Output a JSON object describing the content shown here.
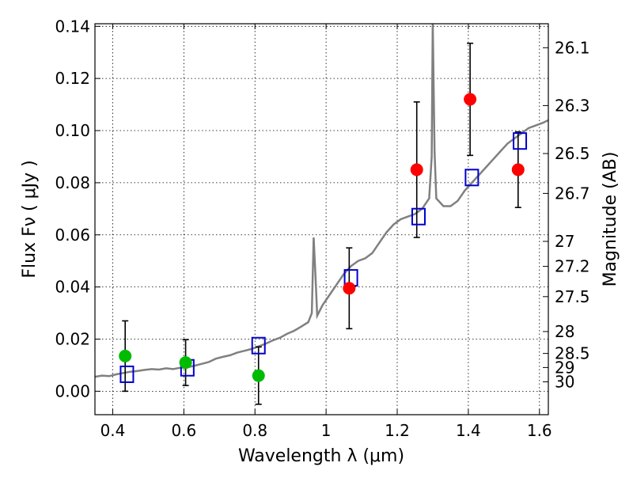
{
  "chart_data": {
    "type": "scatter",
    "xlabel": "Wavelength  λ (μm)",
    "ylabel": "Flux  Fν  ( μJy )",
    "y2label": "Magnitude (AB)",
    "xlim": [
      0.35,
      1.625
    ],
    "ylim": [
      -0.009,
      0.141
    ],
    "x_ticks": [
      0.4,
      0.6,
      0.8,
      1.0,
      1.2,
      1.4,
      1.6
    ],
    "x_tick_labels": [
      "0.4",
      "0.6",
      "0.8",
      "1",
      "1.2",
      "1.4",
      "1.6"
    ],
    "y_ticks": [
      0.0,
      0.02,
      0.04,
      0.06,
      0.08,
      0.1,
      0.12,
      0.14
    ],
    "y_tick_labels": [
      "0.00",
      "0.02",
      "0.04",
      "0.06",
      "0.08",
      "0.10",
      "0.12",
      "0.14"
    ],
    "y2_ticks": [
      {
        "label": "26.1",
        "flux": 0.1318
      },
      {
        "label": "26.3",
        "flux": 0.1096
      },
      {
        "label": "26.5",
        "flux": 0.0912
      },
      {
        "label": "26.7",
        "flux": 0.0759
      },
      {
        "label": "27",
        "flux": 0.0575
      },
      {
        "label": "27.2",
        "flux": 0.0479
      },
      {
        "label": "27.5",
        "flux": 0.0363
      },
      {
        "label": "28",
        "flux": 0.0229
      },
      {
        "label": "28.5",
        "flux": 0.0145
      },
      {
        "label": "29",
        "flux": 0.0091
      },
      {
        "label": "30",
        "flux": 0.0036
      }
    ],
    "grid": true,
    "series": [
      {
        "kind": "spectrum",
        "color": "#808080",
        "points": [
          [
            0.35,
            0.0055
          ],
          [
            0.37,
            0.006
          ],
          [
            0.39,
            0.0058
          ],
          [
            0.41,
            0.0065
          ],
          [
            0.43,
            0.007
          ],
          [
            0.45,
            0.0075
          ],
          [
            0.47,
            0.0078
          ],
          [
            0.49,
            0.0082
          ],
          [
            0.51,
            0.0085
          ],
          [
            0.53,
            0.0083
          ],
          [
            0.55,
            0.0088
          ],
          [
            0.57,
            0.0085
          ],
          [
            0.59,
            0.009
          ],
          [
            0.61,
            0.0092
          ],
          [
            0.63,
            0.0098
          ],
          [
            0.65,
            0.0105
          ],
          [
            0.67,
            0.0112
          ],
          [
            0.69,
            0.0125
          ],
          [
            0.71,
            0.0132
          ],
          [
            0.73,
            0.0138
          ],
          [
            0.75,
            0.0148
          ],
          [
            0.77,
            0.0155
          ],
          [
            0.79,
            0.0162
          ],
          [
            0.81,
            0.0172
          ],
          [
            0.83,
            0.0182
          ],
          [
            0.85,
            0.0195
          ],
          [
            0.87,
            0.0205
          ],
          [
            0.89,
            0.022
          ],
          [
            0.91,
            0.0232
          ],
          [
            0.93,
            0.0248
          ],
          [
            0.95,
            0.0265
          ],
          [
            0.96,
            0.03
          ],
          [
            0.965,
            0.059
          ],
          [
            0.97,
            0.045
          ],
          [
            0.975,
            0.029
          ],
          [
            0.99,
            0.033
          ],
          [
            1.01,
            0.037
          ],
          [
            1.03,
            0.041
          ],
          [
            1.05,
            0.045
          ],
          [
            1.07,
            0.048
          ],
          [
            1.09,
            0.05
          ],
          [
            1.11,
            0.051
          ],
          [
            1.13,
            0.053
          ],
          [
            1.15,
            0.057
          ],
          [
            1.17,
            0.061
          ],
          [
            1.19,
            0.064
          ],
          [
            1.21,
            0.066
          ],
          [
            1.23,
            0.067
          ],
          [
            1.25,
            0.068
          ],
          [
            1.27,
            0.07
          ],
          [
            1.28,
            0.072
          ],
          [
            1.29,
            0.074
          ],
          [
            1.297,
            0.09
          ],
          [
            1.3,
            0.142
          ],
          [
            1.305,
            0.092
          ],
          [
            1.31,
            0.074
          ],
          [
            1.33,
            0.071
          ],
          [
            1.35,
            0.071
          ],
          [
            1.37,
            0.073
          ],
          [
            1.39,
            0.077
          ],
          [
            1.41,
            0.08
          ],
          [
            1.43,
            0.083
          ],
          [
            1.45,
            0.086
          ],
          [
            1.47,
            0.089
          ],
          [
            1.49,
            0.092
          ],
          [
            1.51,
            0.095
          ],
          [
            1.53,
            0.097
          ],
          [
            1.55,
            0.099
          ],
          [
            1.57,
            0.101
          ],
          [
            1.59,
            0.102
          ],
          [
            1.61,
            0.103
          ],
          [
            1.625,
            0.104
          ]
        ]
      },
      {
        "kind": "model_photometry",
        "color": "#0000cc",
        "points": [
          [
            0.44,
            0.0065
          ],
          [
            0.61,
            0.009
          ],
          [
            0.81,
            0.0175
          ],
          [
            1.07,
            0.0435
          ],
          [
            1.26,
            0.067
          ],
          [
            1.41,
            0.082
          ],
          [
            1.545,
            0.096
          ]
        ]
      },
      {
        "kind": "observed_optical",
        "color": "#00bb00",
        "points": [
          {
            "x": 0.435,
            "y": 0.0135,
            "err": 0.0135
          },
          {
            "x": 0.605,
            "y": 0.011,
            "err": 0.0088
          },
          {
            "x": 0.81,
            "y": 0.006,
            "err": 0.011
          }
        ]
      },
      {
        "kind": "observed_nir",
        "color": "#ff0000",
        "points": [
          {
            "x": 1.065,
            "y": 0.0395,
            "err": 0.0155
          },
          {
            "x": 1.255,
            "y": 0.085,
            "err": 0.026
          },
          {
            "x": 1.405,
            "y": 0.112,
            "err": 0.0215
          },
          {
            "x": 1.54,
            "y": 0.085,
            "err": 0.0145
          }
        ]
      }
    ]
  }
}
